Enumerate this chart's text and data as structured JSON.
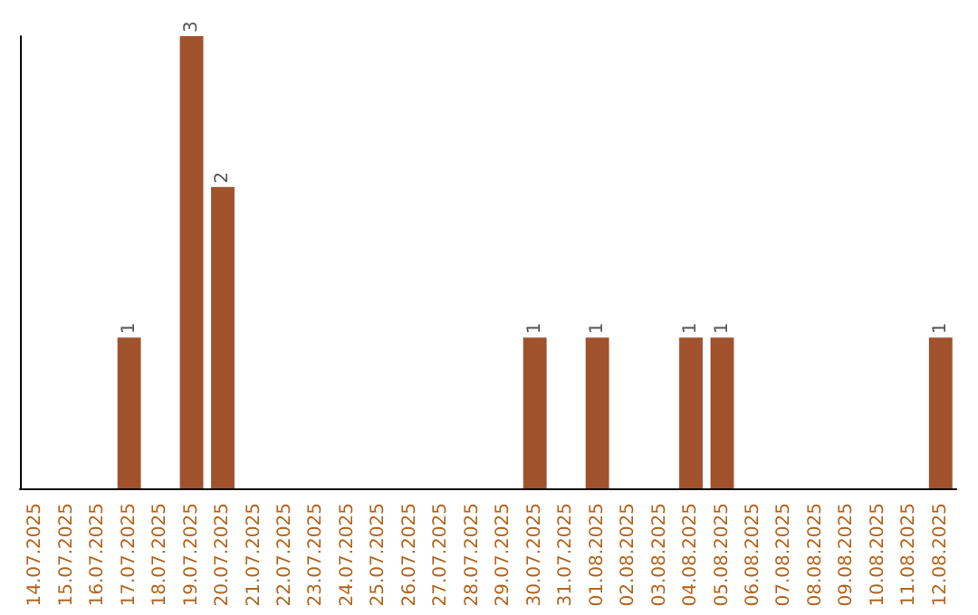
{
  "chart_data": {
    "type": "bar",
    "categories": [
      "14.07.2025",
      "15.07.2025",
      "16.07.2025",
      "17.07.2025",
      "18.07.2025",
      "19.07.2025",
      "20.07.2025",
      "21.07.2025",
      "22.07.2025",
      "23.07.2025",
      "24.07.2025",
      "25.07.2025",
      "26.07.2025",
      "27.07.2025",
      "28.07.2025",
      "29.07.2025",
      "30.07.2025",
      "31.07.2025",
      "01.08.2025",
      "02.08.2025",
      "03.08.2025",
      "04.08.2025",
      "05.08.2025",
      "06.08.2025",
      "07.08.2025",
      "08.08.2025",
      "09.08.2025",
      "10.08.2025",
      "11.08.2025",
      "12.08.2025"
    ],
    "values": [
      0,
      0,
      0,
      1,
      0,
      3,
      2,
      0,
      0,
      0,
      0,
      0,
      0,
      0,
      0,
      0,
      1,
      0,
      1,
      0,
      0,
      1,
      1,
      0,
      0,
      0,
      0,
      0,
      0,
      1
    ],
    "value_labels": [
      null,
      null,
      null,
      "1",
      null,
      "3",
      "2",
      null,
      null,
      null,
      null,
      null,
      null,
      null,
      null,
      null,
      "1",
      null,
      "1",
      null,
      null,
      "1",
      "1",
      null,
      null,
      null,
      null,
      null,
      null,
      "1"
    ],
    "color": "#a0522d",
    "tick_labels": "x"
  }
}
